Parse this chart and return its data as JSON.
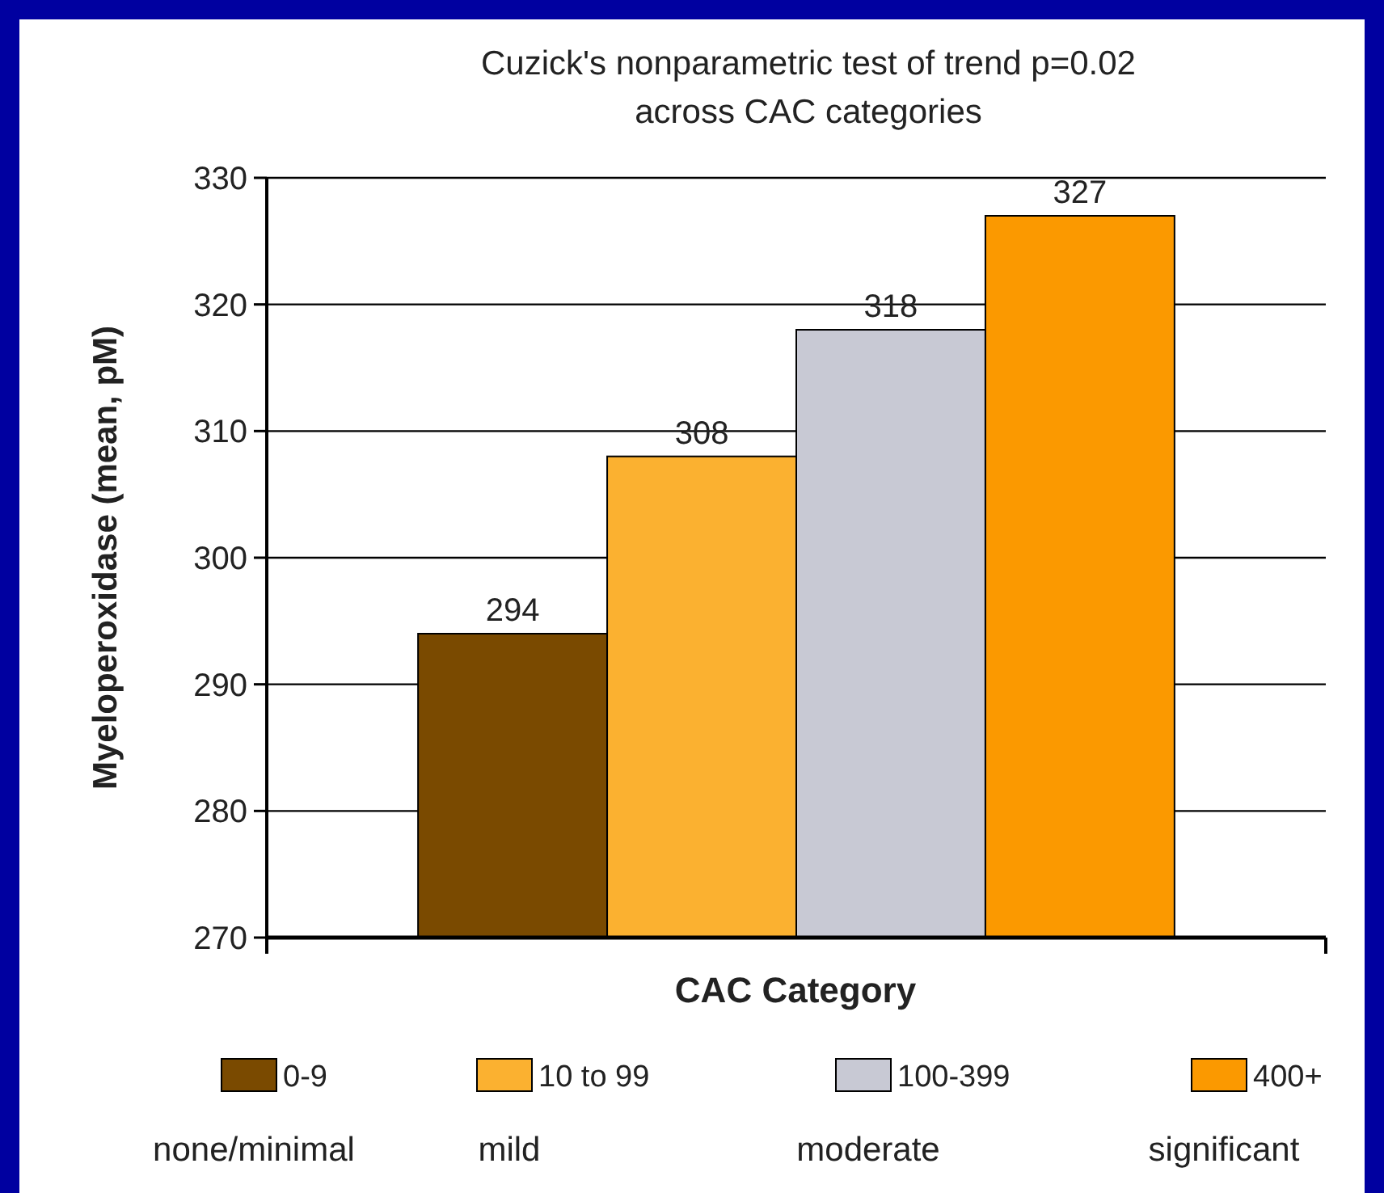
{
  "chart_data": {
    "type": "bar",
    "title": "Cuzick's nonparametric test of trend p=0.02\nacross CAC categories",
    "xlabel": "CAC Category",
    "ylabel": "Myeloperoxidase (mean, pM)",
    "categories": [
      null
    ],
    "series": [
      {
        "name": "0-9",
        "color": "#7a4a00",
        "values": [
          294
        ]
      },
      {
        "name": "10 to 99",
        "color": "#fbb130",
        "values": [
          308
        ]
      },
      {
        "name": "100-399",
        "color": "#c8c9d4",
        "values": [
          318
        ]
      },
      {
        "name": "400+",
        "color": "#fb9900",
        "values": [
          327
        ]
      }
    ],
    "annotations": [
      "none/minimal",
      "mild",
      "moderate",
      "significant"
    ],
    "ylim": [
      270,
      330
    ],
    "yticks": [
      270,
      280,
      290,
      300,
      310,
      320,
      330
    ],
    "grid": "y",
    "legend": "bottom",
    "data_labels": true
  }
}
